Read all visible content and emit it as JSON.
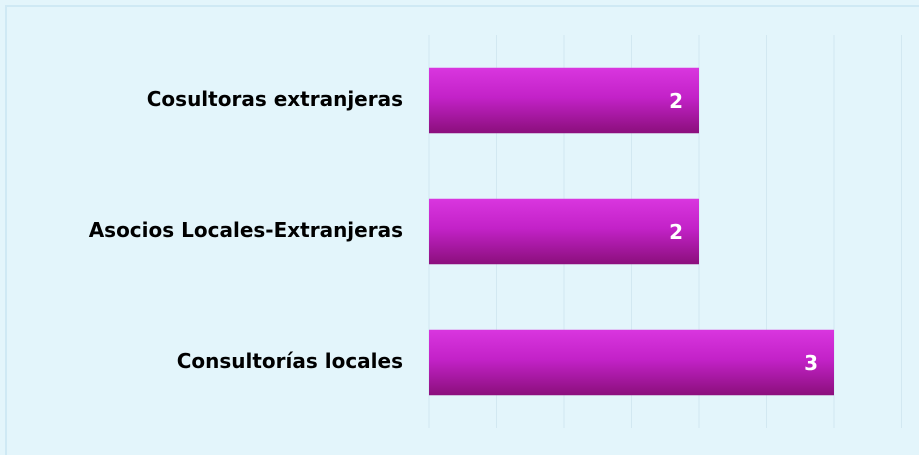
{
  "chart_data": {
    "type": "barh",
    "categories": [
      "Cosultoras extranjeras",
      "Asocios Locales-Extranjeras",
      "Consultorías locales"
    ],
    "values": [
      2,
      2,
      3
    ],
    "color": "#c21fc4",
    "xlim": [
      0,
      3.5
    ],
    "xticks": [
      0,
      0.5,
      1,
      1.5,
      2,
      2.5,
      3,
      3.5
    ],
    "grid": true
  }
}
